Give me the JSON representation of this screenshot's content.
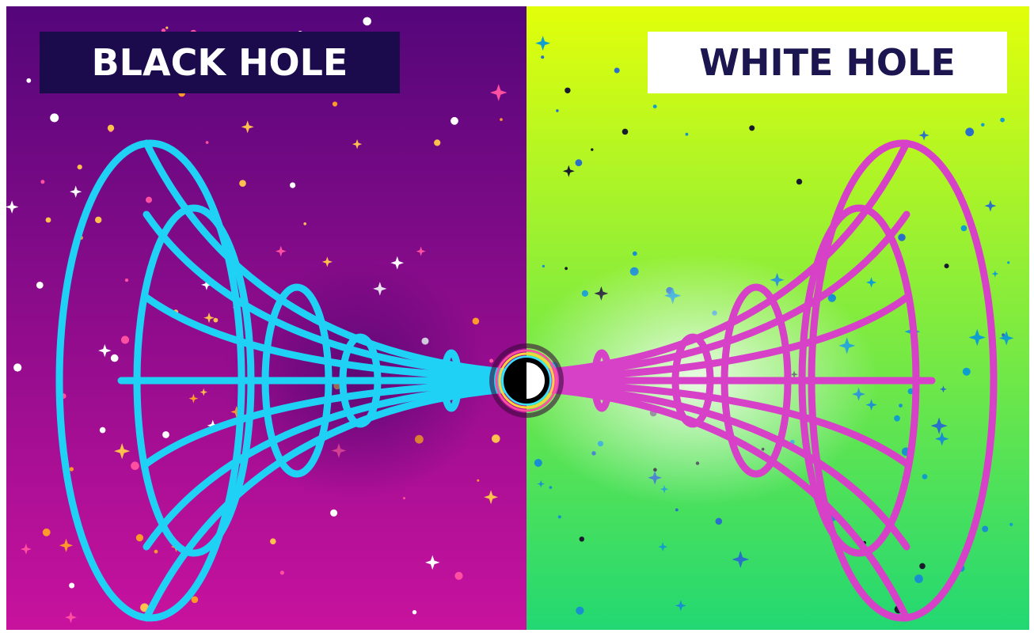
{
  "panels": {
    "left": {
      "label": "BLACK HOLE",
      "background_top": "#54067a",
      "background_bottom": "#c8129e",
      "funnel_color": "#1fd2f5"
    },
    "right": {
      "label": "WHITE HOLE",
      "background_top": "#e2ff0a",
      "background_bottom": "#22d872",
      "funnel_color": "#d641c8"
    }
  },
  "center": {
    "icon": "black-white-disc-icon"
  }
}
